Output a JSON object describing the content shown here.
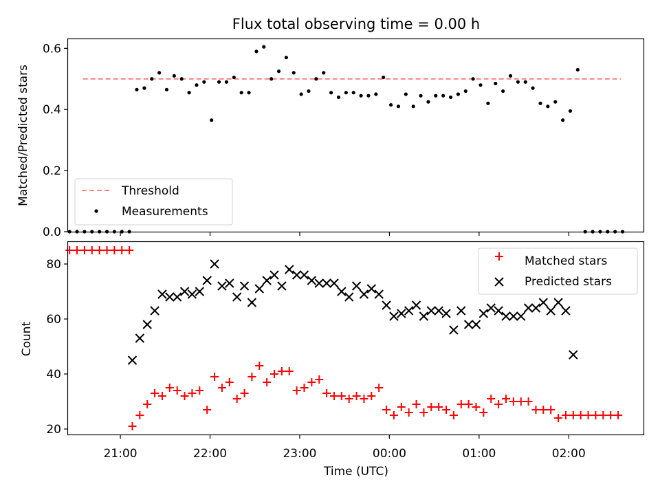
{
  "figure": {
    "title": "Flux total observing time = 0.00 h"
  },
  "chart_data": [
    {
      "type": "scatter",
      "panel": "top",
      "title": "Flux total observing time = 0.00 h",
      "ylabel": "Matched/Predicted stars",
      "xlabel": "",
      "ylim": [
        0,
        0.63
      ],
      "yticks": [
        0.0,
        0.2,
        0.4,
        0.6
      ],
      "ytick_labels": [
        "0.0",
        "0.2",
        "0.4",
        "0.6"
      ],
      "grid": false,
      "legend_position": "lower-left",
      "legend": [
        {
          "label": "Threshold",
          "marker": "dashed-line",
          "color": "#ff7f7f"
        },
        {
          "label": "Measurements",
          "marker": "dot",
          "color": "#000000"
        }
      ],
      "threshold": {
        "name": "Threshold",
        "value": 0.5,
        "x_start": "20:35",
        "x_end": "02:35",
        "color": "#ff7f7f",
        "style": "dashed"
      },
      "series": [
        {
          "name": "Measurements",
          "color": "#000000",
          "marker": "dot",
          "x": [
            "20:26",
            "20:31",
            "20:36",
            "20:41",
            "20:46",
            "20:51",
            "20:56",
            "21:01",
            "21:06",
            "21:11",
            "21:16",
            "21:21",
            "21:26",
            "21:31",
            "21:36",
            "21:41",
            "21:46",
            "21:51",
            "21:56",
            "22:01",
            "22:06",
            "22:11",
            "22:16",
            "22:21",
            "22:26",
            "22:31",
            "22:36",
            "22:41",
            "22:46",
            "22:51",
            "22:56",
            "23:01",
            "23:06",
            "23:11",
            "23:16",
            "23:21",
            "23:26",
            "23:31",
            "23:36",
            "23:41",
            "23:46",
            "23:51",
            "23:56",
            "00:01",
            "00:06",
            "00:11",
            "00:16",
            "00:21",
            "00:26",
            "00:31",
            "00:36",
            "00:41",
            "00:46",
            "00:51",
            "00:56",
            "01:01",
            "01:06",
            "01:11",
            "01:16",
            "01:21",
            "01:26",
            "01:31",
            "01:36",
            "01:41",
            "01:46",
            "01:51",
            "01:56",
            "02:01",
            "02:06",
            "02:11",
            "02:16",
            "02:21",
            "02:26",
            "02:31",
            "02:36"
          ],
          "y": [
            0,
            0,
            0,
            0,
            0,
            0,
            0,
            0,
            0,
            0.465,
            0.47,
            0.5,
            0.52,
            0.465,
            0.51,
            0.5,
            0.455,
            0.48,
            0.49,
            0.365,
            0.49,
            0.49,
            0.505,
            0.455,
            0.455,
            0.59,
            0.605,
            0.5,
            0.525,
            0.57,
            0.52,
            0.45,
            0.46,
            0.5,
            0.52,
            0.455,
            0.44,
            0.455,
            0.455,
            0.445,
            0.445,
            0.45,
            0.505,
            0.415,
            0.41,
            0.45,
            0.41,
            0.445,
            0.425,
            0.445,
            0.445,
            0.44,
            0.45,
            0.46,
            0.5,
            0.48,
            0.42,
            0.485,
            0.46,
            0.51,
            0.49,
            0.49,
            0.47,
            0.42,
            0.41,
            0.425,
            0.365,
            0.395,
            0.53,
            0,
            0,
            0,
            0,
            0,
            0
          ]
        }
      ]
    },
    {
      "type": "scatter",
      "panel": "bottom",
      "title": "",
      "xlabel": "Time (UTC)",
      "ylabel": "Count",
      "ylim": [
        18,
        88
      ],
      "yticks": [
        20,
        40,
        60,
        80
      ],
      "ytick_labels": [
        "20",
        "40",
        "60",
        "80"
      ],
      "xlim": [
        "20:25",
        "02:50"
      ],
      "xticks": [
        "21:00",
        "22:00",
        "23:00",
        "00:00",
        "01:00",
        "02:00"
      ],
      "xtick_labels": [
        "21:00",
        "22:00",
        "23:00",
        "00:00",
        "01:00",
        "02:00"
      ],
      "grid": false,
      "legend_position": "upper-right",
      "legend": [
        {
          "label": "Matched stars",
          "marker": "plus",
          "color": "#ff0000"
        },
        {
          "label": "Predicted stars",
          "marker": "x",
          "color": "#000000"
        }
      ],
      "series": [
        {
          "name": "Matched stars",
          "color": "#ff0000",
          "marker": "plus",
          "x": [
            "20:26",
            "20:31",
            "20:36",
            "20:41",
            "20:46",
            "20:51",
            "20:56",
            "21:01",
            "21:06",
            "21:08",
            "21:13",
            "21:18",
            "21:23",
            "21:28",
            "21:33",
            "21:38",
            "21:43",
            "21:48",
            "21:53",
            "21:58",
            "22:03",
            "22:08",
            "22:13",
            "22:18",
            "22:23",
            "22:28",
            "22:33",
            "22:38",
            "22:43",
            "22:48",
            "22:53",
            "22:58",
            "23:03",
            "23:08",
            "23:13",
            "23:18",
            "23:23",
            "23:28",
            "23:33",
            "23:38",
            "23:43",
            "23:48",
            "23:53",
            "23:58",
            "00:03",
            "00:08",
            "00:13",
            "00:18",
            "00:23",
            "00:28",
            "00:33",
            "00:38",
            "00:43",
            "00:48",
            "00:53",
            "00:58",
            "01:03",
            "01:08",
            "01:13",
            "01:18",
            "01:23",
            "01:28",
            "01:33",
            "01:38",
            "01:43",
            "01:48",
            "01:53",
            "01:58",
            "02:03",
            "02:08",
            "02:13",
            "02:18",
            "02:23",
            "02:28",
            "02:33"
          ],
          "y": [
            85,
            85,
            85,
            85,
            85,
            85,
            85,
            85,
            85,
            21,
            25,
            29,
            33,
            32,
            35,
            34,
            32,
            33,
            34,
            27,
            39,
            35,
            37,
            31,
            33,
            39,
            43,
            37,
            40,
            41,
            41,
            34,
            35,
            37,
            38,
            33,
            32,
            32,
            31,
            32,
            31,
            32,
            35,
            27,
            25,
            28,
            26,
            29,
            26,
            28,
            28,
            27,
            25,
            29,
            29,
            28,
            26,
            31,
            29,
            31,
            30,
            30,
            30,
            27,
            27,
            27,
            24,
            25,
            25,
            25,
            25,
            25,
            25,
            25,
            25
          ]
        },
        {
          "name": "Predicted stars",
          "color": "#000000",
          "marker": "x",
          "x": [
            "21:08",
            "21:13",
            "21:18",
            "21:23",
            "21:28",
            "21:33",
            "21:38",
            "21:43",
            "21:48",
            "21:53",
            "21:58",
            "22:03",
            "22:08",
            "22:13",
            "22:18",
            "22:23",
            "22:28",
            "22:33",
            "22:38",
            "22:43",
            "22:48",
            "22:53",
            "22:58",
            "23:03",
            "23:08",
            "23:13",
            "23:18",
            "23:23",
            "23:28",
            "23:33",
            "23:38",
            "23:43",
            "23:48",
            "23:53",
            "23:58",
            "00:03",
            "00:08",
            "00:13",
            "00:18",
            "00:23",
            "00:28",
            "00:33",
            "00:38",
            "00:43",
            "00:48",
            "00:53",
            "00:58",
            "01:03",
            "01:08",
            "01:13",
            "01:18",
            "01:23",
            "01:28",
            "01:33",
            "01:38",
            "01:43",
            "01:48",
            "01:53",
            "01:58",
            "02:03"
          ],
          "y": [
            45,
            53,
            58,
            63,
            69,
            68,
            68,
            70,
            69,
            70,
            74,
            80,
            72,
            73,
            68,
            72,
            66,
            71,
            74,
            76,
            72,
            78,
            76,
            76,
            74,
            73,
            73,
            73,
            70,
            68,
            72,
            69,
            71,
            69,
            65,
            61,
            62,
            63,
            65,
            61,
            63,
            63,
            62,
            56,
            63,
            58,
            58,
            62,
            64,
            63,
            61,
            61,
            61,
            64,
            64,
            66,
            63,
            66,
            63,
            47
          ]
        }
      ]
    }
  ]
}
